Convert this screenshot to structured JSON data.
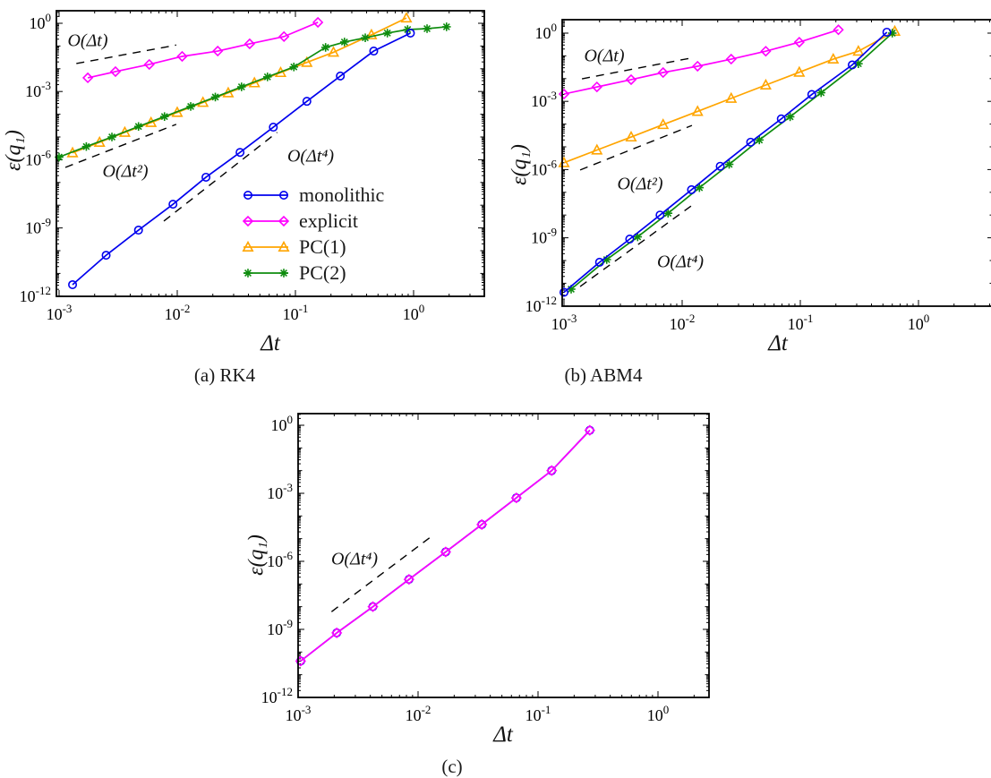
{
  "figure": {
    "xlabel": "Δt",
    "ylabel": "ε(q₁)"
  },
  "chart_data": [
    {
      "id": "a",
      "type": "line",
      "caption": "(a) RK4",
      "xlabel": "Δt",
      "ylabel": "ε(q₁)",
      "xscale": "log",
      "yscale": "log",
      "xlim": [
        0.001,
        4.0
      ],
      "ylim": [
        1e-12,
        3.5
      ],
      "xticks_exponents": [
        -3,
        -2,
        -1,
        0
      ],
      "yticks_exponents": [
        0,
        -3,
        -6,
        -9,
        -12
      ],
      "grid": false,
      "legend_position": "inside-lower-right",
      "series": [
        {
          "name": "monolithic",
          "color": "#0000ee",
          "marker": "circle",
          "x": [
            0.0013,
            0.0025,
            0.0047,
            0.0092,
            0.0175,
            0.034,
            0.065,
            0.125,
            0.24,
            0.46,
            0.94
          ],
          "y": [
            3.2e-12,
            6.3e-11,
            8e-10,
            1.1e-08,
            1.7e-07,
            2.1e-06,
            2.7e-05,
            0.00037,
            0.0048,
            0.06,
            0.37
          ]
        },
        {
          "name": "explicit",
          "color": "#ff00ff",
          "marker": "diamond",
          "x": [
            0.00175,
            0.003,
            0.0058,
            0.011,
            0.022,
            0.041,
            0.08,
            0.155
          ],
          "y": [
            0.004,
            0.0075,
            0.0155,
            0.035,
            0.06,
            0.125,
            0.26,
            1.1
          ]
        },
        {
          "name": "PC(1)",
          "color": "#ffa500",
          "marker": "triangle",
          "x": [
            0.0013,
            0.0022,
            0.0036,
            0.006,
            0.01,
            0.0165,
            0.027,
            0.045,
            0.075,
            0.125,
            0.21,
            0.44,
            0.87
          ],
          "y": [
            2e-06,
            5.8e-06,
            1.6e-05,
            4.3e-05,
            0.00012,
            0.00033,
            0.00087,
            0.0024,
            0.0068,
            0.019,
            0.053,
            0.31,
            1.7
          ]
        },
        {
          "name": "PC(2)",
          "color": "#0e8c0e",
          "marker": "asterisk",
          "x": [
            0.001,
            0.0017,
            0.0028,
            0.0047,
            0.0078,
            0.013,
            0.021,
            0.035,
            0.058,
            0.097,
            0.18,
            0.26,
            0.39,
            0.6,
            0.89,
            1.3,
            1.9
          ],
          "y": [
            1.3e-06,
            3.8e-06,
            1e-05,
            2.9e-05,
            7.9e-05,
            0.00022,
            0.00057,
            0.0016,
            0.0044,
            0.012,
            0.087,
            0.15,
            0.23,
            0.37,
            0.53,
            0.58,
            0.7
          ]
        }
      ],
      "guides": [
        {
          "label": "O(Δt)",
          "x": [
            0.0014,
            0.0098
          ],
          "y": [
            0.017,
            0.11
          ]
        },
        {
          "label": "O(Δt²)",
          "x": [
            0.00113,
            0.0098
          ],
          "y": [
            4.6e-07,
            3.6e-05
          ]
        },
        {
          "label": "O(Δt⁴)",
          "x": [
            0.0077,
            0.07
          ],
          "y": [
            2e-09,
            1.6e-05
          ]
        }
      ]
    },
    {
      "id": "b",
      "type": "line",
      "caption": "(b) ABM4",
      "xlabel": "Δt",
      "ylabel": "ε(q₁)",
      "xscale": "log",
      "yscale": "log",
      "xlim": [
        0.001,
        4.1
      ],
      "ylim": [
        1e-12,
        3.9
      ],
      "xticks_exponents": [
        -3,
        -2,
        -1,
        0
      ],
      "yticks_exponents": [
        0,
        -3,
        -6,
        -9,
        -12
      ],
      "grid": false,
      "legend_position": "none",
      "series": [
        {
          "name": "monolithic",
          "color": "#0000ee",
          "marker": "circle",
          "x": [
            0.001,
            0.002,
            0.0036,
            0.0065,
            0.012,
            0.021,
            0.038,
            0.069,
            0.125,
            0.275,
            0.54
          ],
          "y": [
            4e-12,
            8.4e-11,
            8.8e-10,
            1e-08,
            1.3e-07,
            1.4e-06,
            1.6e-05,
            0.00017,
            0.002,
            0.04,
            1.1
          ]
        },
        {
          "name": "explicit",
          "color": "#ff00ff",
          "marker": "diamond",
          "x": [
            0.001,
            0.0019,
            0.0037,
            0.0069,
            0.0135,
            0.026,
            0.051,
            0.098,
            0.21
          ],
          "y": [
            0.0021,
            0.0043,
            0.009,
            0.0185,
            0.035,
            0.072,
            0.16,
            0.4,
            1.4
          ]
        },
        {
          "name": "PC(1)",
          "color": "#ffa500",
          "marker": "triangle",
          "x": [
            0.001,
            0.0019,
            0.0037,
            0.0069,
            0.0135,
            0.026,
            0.051,
            0.098,
            0.19,
            0.31,
            0.63
          ],
          "y": [
            2e-06,
            7.2e-06,
            2.7e-05,
            9.5e-05,
            0.00036,
            0.00135,
            0.0052,
            0.019,
            0.072,
            0.16,
            1.2
          ]
        },
        {
          "name": "PC(2)",
          "color": "#0e8c0e",
          "marker": "asterisk",
          "x": [
            0.00115,
            0.0023,
            0.0042,
            0.0076,
            0.014,
            0.025,
            0.045,
            0.082,
            0.15,
            0.31,
            0.6
          ],
          "y": [
            5.5e-12,
            1.1e-10,
            1.1e-09,
            1.2e-08,
            1.6e-07,
            1.7e-06,
            2e-05,
            0.00021,
            0.0024,
            0.045,
            1.0
          ]
        }
      ],
      "guides": [
        {
          "label": "O(Δt)",
          "x": [
            0.00142,
            0.0117
          ],
          "y": [
            0.0098,
            0.079
          ]
        },
        {
          "label": "O(Δt²)",
          "x": [
            0.00137,
            0.0121
          ],
          "y": [
            9.6e-07,
            8.7e-05
          ]
        },
        {
          "label": "O(Δt⁴)",
          "x": [
            0.00137,
            0.0125
          ],
          "y": [
            7.2e-12,
            3e-08
          ]
        }
      ]
    },
    {
      "id": "c",
      "type": "line",
      "caption": "(c)",
      "xlabel": "Δt",
      "ylabel": "ε(q₁)",
      "xscale": "log",
      "yscale": "log",
      "xlim": [
        0.001,
        2.6
      ],
      "ylim": [
        1e-12,
        3.2
      ],
      "xticks_exponents": [
        -3,
        -2,
        -1,
        0
      ],
      "yticks_exponents": [
        0,
        -3,
        -6,
        -9,
        -12
      ],
      "grid": false,
      "legend_position": "none",
      "series": [
        {
          "name": "monolithic",
          "color": "#0000ee",
          "marker": "circle",
          "x": [
            0.00105,
            0.0021,
            0.0042,
            0.0084,
            0.017,
            0.034,
            0.066,
            0.13,
            0.27
          ],
          "y": [
            4e-11,
            7e-10,
            1e-08,
            1.6e-07,
            2.6e-06,
            4.2e-05,
            0.00063,
            0.01,
            0.6
          ]
        },
        {
          "name": "explicit",
          "color": "#ff00ff",
          "marker": "diamond",
          "x": [
            0.00105,
            0.0021,
            0.0042,
            0.0084,
            0.017,
            0.034,
            0.066,
            0.13,
            0.27
          ],
          "y": [
            4e-11,
            7e-10,
            1e-08,
            1.6e-07,
            2.6e-06,
            4.2e-05,
            0.00063,
            0.01,
            0.6
          ]
        }
      ],
      "guides": [
        {
          "label": "O(Δt⁴)",
          "x": [
            0.0019,
            0.0135
          ],
          "y": [
            6e-09,
            1.5e-05
          ]
        }
      ]
    }
  ]
}
